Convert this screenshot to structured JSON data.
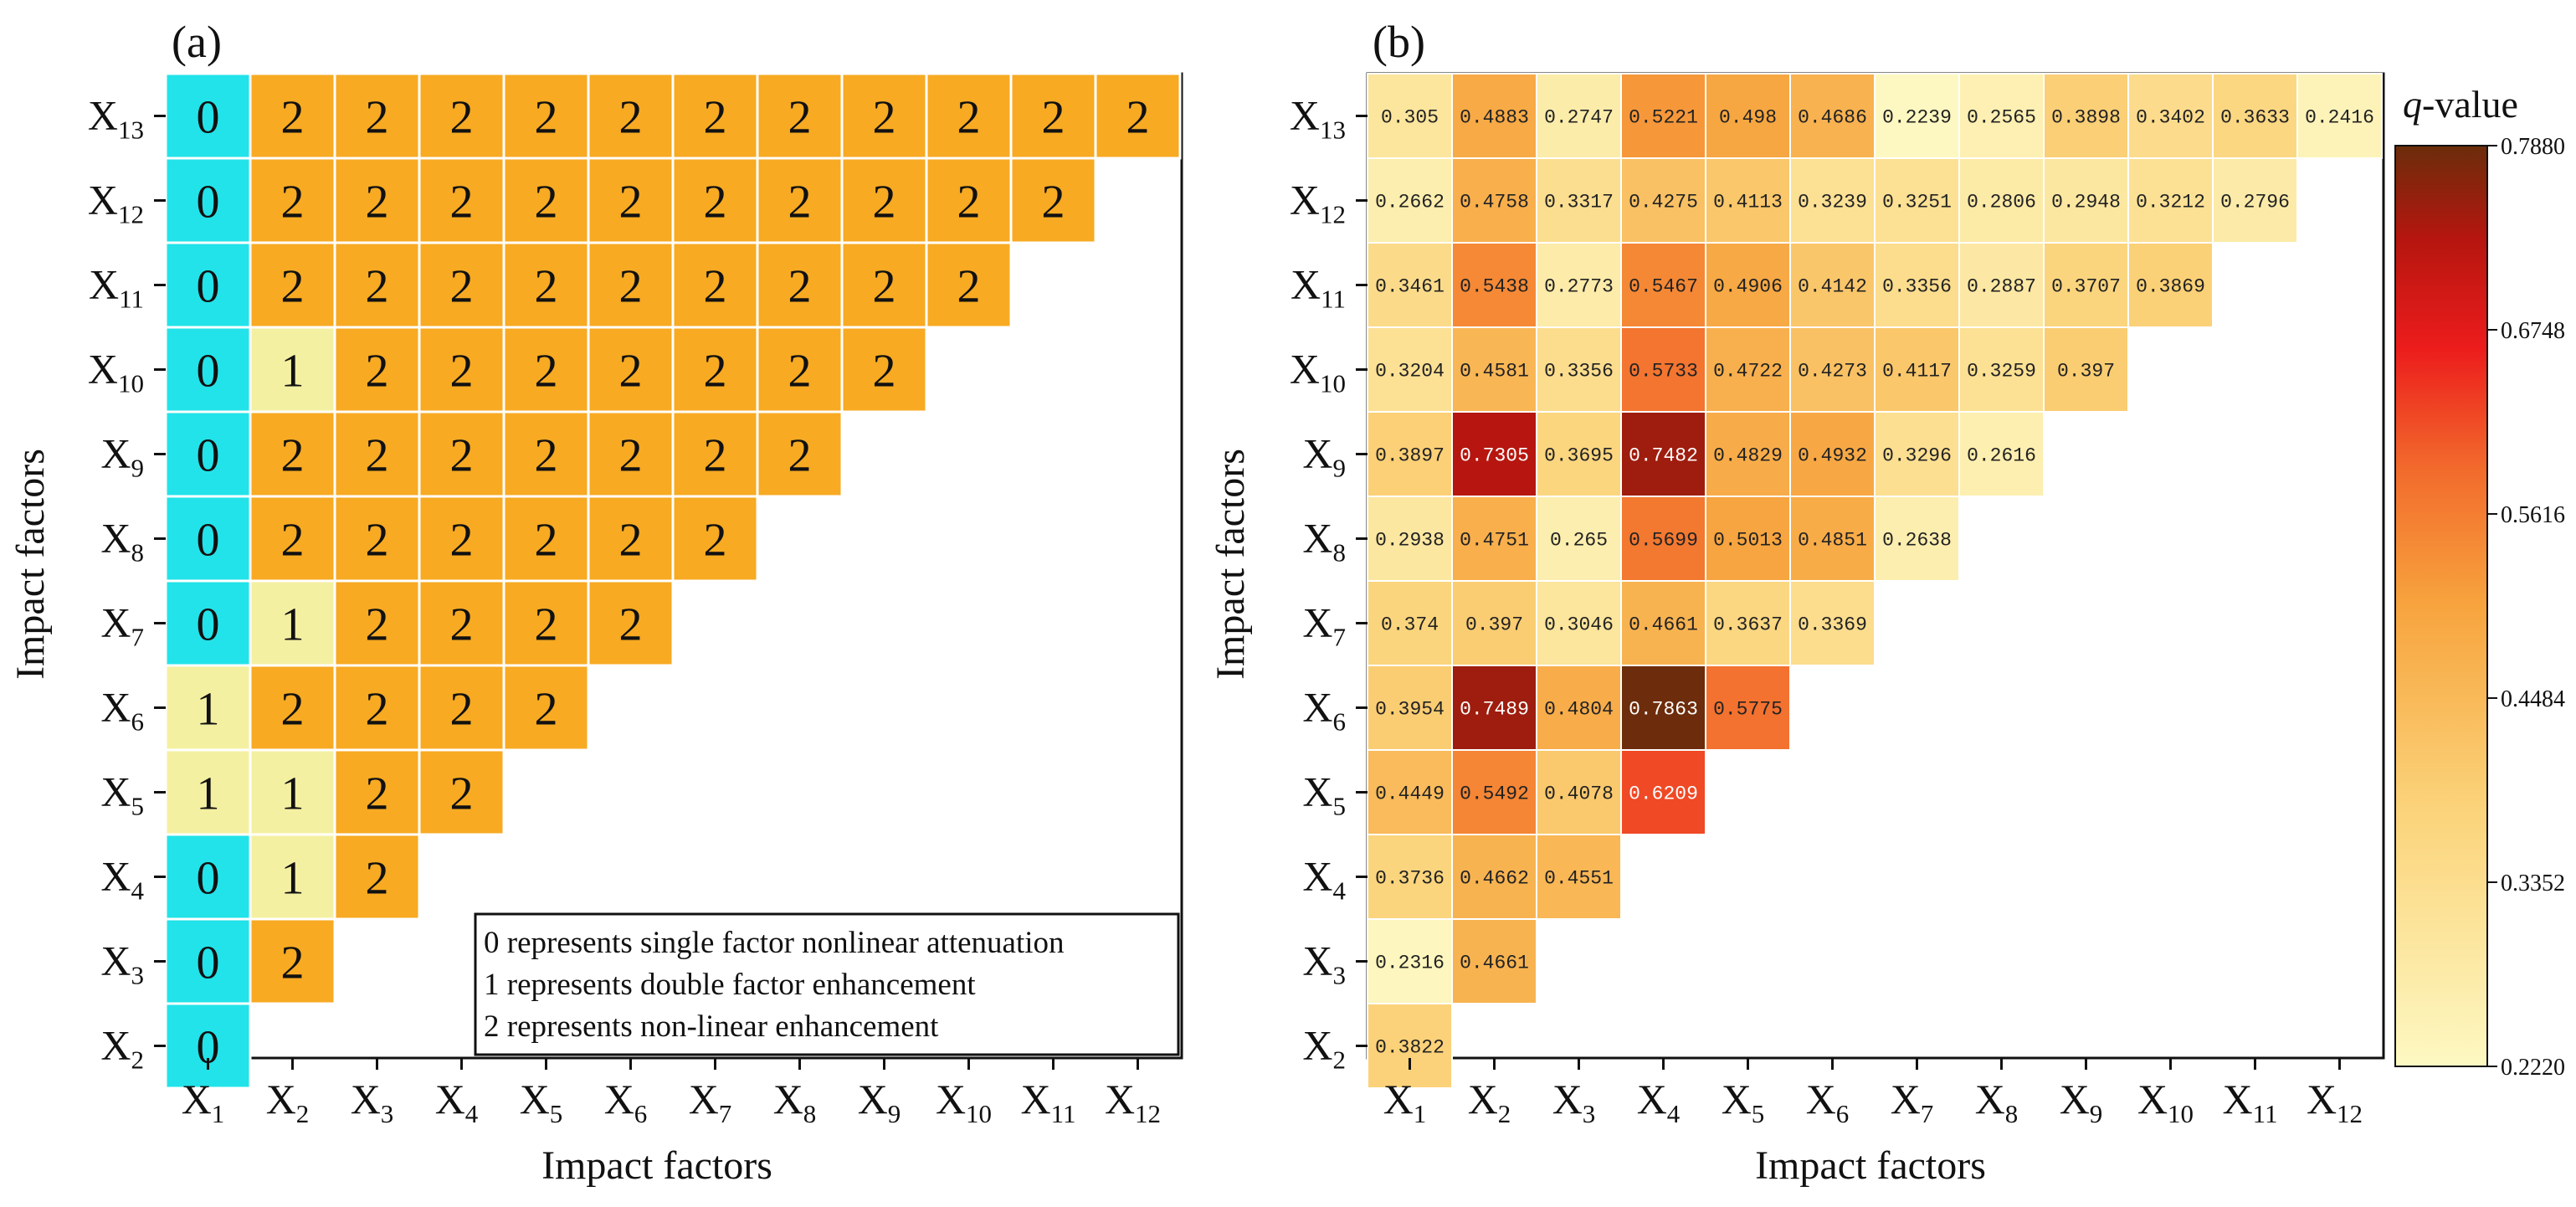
{
  "chart_data": [
    {
      "type": "heatmap",
      "panel_label": "(a)",
      "xlabel": "Impact factors",
      "ylabel": "Impact factors",
      "x_categories": [
        "X1",
        "X2",
        "X3",
        "X4",
        "X5",
        "X6",
        "X7",
        "X8",
        "X9",
        "X10",
        "X11",
        "X12"
      ],
      "y_categories": [
        "X13",
        "X12",
        "X11",
        "X10",
        "X9",
        "X8",
        "X7",
        "X6",
        "X5",
        "X4",
        "X3",
        "X2"
      ],
      "values": [
        [
          0,
          2,
          2,
          2,
          2,
          2,
          2,
          2,
          2,
          2,
          2,
          2
        ],
        [
          0,
          2,
          2,
          2,
          2,
          2,
          2,
          2,
          2,
          2,
          2
        ],
        [
          0,
          2,
          2,
          2,
          2,
          2,
          2,
          2,
          2,
          2
        ],
        [
          0,
          1,
          2,
          2,
          2,
          2,
          2,
          2,
          2
        ],
        [
          0,
          2,
          2,
          2,
          2,
          2,
          2,
          2
        ],
        [
          0,
          2,
          2,
          2,
          2,
          2,
          2
        ],
        [
          0,
          1,
          2,
          2,
          2,
          2
        ],
        [
          1,
          2,
          2,
          2,
          2
        ],
        [
          1,
          1,
          2,
          2
        ],
        [
          0,
          1,
          2
        ],
        [
          0,
          2
        ],
        [
          0
        ]
      ],
      "category_colors": {
        "0": "#22e3e9",
        "1": "#f4f0a2",
        "2": "#f7aa22"
      },
      "legend_title": "",
      "legend_entries": [
        "0 represents single factor nonlinear attenuation",
        "1 represents double factor enhancement",
        "2 represents non-linear enhancement"
      ],
      "legend_position": "bottom-right"
    },
    {
      "type": "heatmap",
      "panel_label": "(b)",
      "xlabel": "Impact factors",
      "ylabel": "Impact factors",
      "x_categories": [
        "X1",
        "X2",
        "X3",
        "X4",
        "X5",
        "X6",
        "X7",
        "X8",
        "X9",
        "X10",
        "X11",
        "X12"
      ],
      "y_categories": [
        "X13",
        "X12",
        "X11",
        "X10",
        "X9",
        "X8",
        "X7",
        "X6",
        "X5",
        "X4",
        "X3",
        "X2"
      ],
      "values": [
        [
          "0.305",
          "0.4883",
          "0.2747",
          "0.5221",
          "0.498",
          "0.4686",
          "0.2239",
          "0.2565",
          "0.3898",
          "0.3402",
          "0.3633",
          "0.2416"
        ],
        [
          "0.2662",
          "0.4758",
          "0.3317",
          "0.4275",
          "0.4113",
          "0.3239",
          "0.3251",
          "0.2806",
          "0.2948",
          "0.3212",
          "0.2796"
        ],
        [
          "0.3461",
          "0.5438",
          "0.2773",
          "0.5467",
          "0.4906",
          "0.4142",
          "0.3356",
          "0.2887",
          "0.3707",
          "0.3869"
        ],
        [
          "0.3204",
          "0.4581",
          "0.3356",
          "0.5733",
          "0.4722",
          "0.4273",
          "0.4117",
          "0.3259",
          "0.397"
        ],
        [
          "0.3897",
          "0.7305",
          "0.3695",
          "0.7482",
          "0.4829",
          "0.4932",
          "0.3296",
          "0.2616"
        ],
        [
          "0.2938",
          "0.4751",
          "0.265",
          "0.5699",
          "0.5013",
          "0.4851",
          "0.2638"
        ],
        [
          "0.374",
          "0.397",
          "0.3046",
          "0.4661",
          "0.3637",
          "0.3369"
        ],
        [
          "0.3954",
          "0.7489",
          "0.4804",
          "0.7863",
          "0.5775"
        ],
        [
          "0.4449",
          "0.5492",
          "0.4078",
          "0.6209"
        ],
        [
          "0.3736",
          "0.4662",
          "0.4551"
        ],
        [
          "0.2316",
          "0.4661"
        ],
        [
          "0.3822"
        ]
      ],
      "colorbar": {
        "title": "q-value",
        "min": 0.222,
        "max": 0.788,
        "tick_labels": [
          "0.7880",
          "0.6748",
          "0.5616",
          "0.4484",
          "0.3352",
          "0.2220"
        ]
      }
    }
  ]
}
